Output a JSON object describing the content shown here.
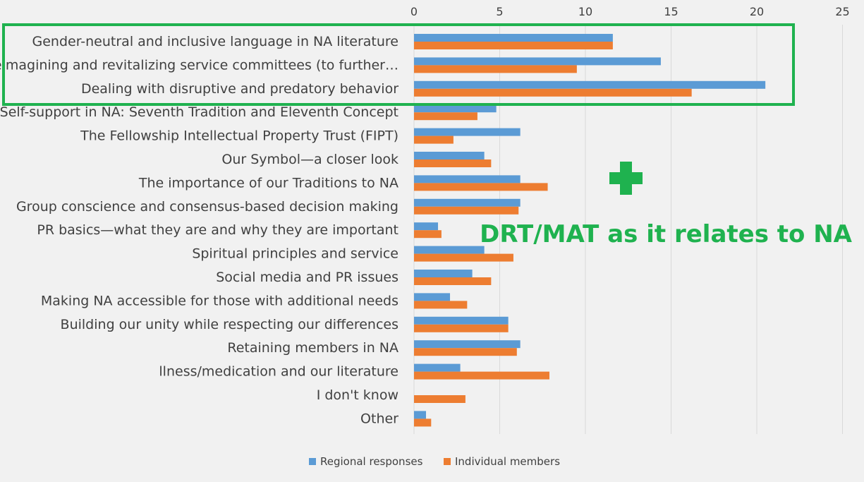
{
  "chart_data": {
    "type": "bar",
    "orientation": "horizontal",
    "categories": [
      "Gender-neutral and inclusive language in NA literature",
      "Reimagining and revitalizing service committees (to further…",
      "Dealing with disruptive and predatory behavior",
      "Self-support in NA: Seventh Tradition and Eleventh Concept",
      "The Fellowship Intellectual Property Trust (FIPT)",
      "Our Symbol—a closer look",
      "The importance of our Traditions to NA",
      "Group conscience and consensus-based decision making",
      "PR basics—what they are and why they are important",
      "Spiritual principles and service",
      "Social media and PR issues",
      "Making NA accessible for those with additional needs",
      "Building our unity while respecting our differences",
      "Retaining members in NA",
      "llness/medication and our literature",
      "I don't know",
      "Other"
    ],
    "series": [
      {
        "name": "Regional responses",
        "color": "#5b9bd5",
        "values": [
          11.6,
          14.4,
          20.5,
          4.8,
          6.2,
          4.1,
          6.2,
          6.2,
          1.4,
          4.1,
          3.4,
          2.1,
          5.5,
          6.2,
          2.7,
          0,
          0.7
        ]
      },
      {
        "name": "Individual members",
        "color": "#ed7d31",
        "values": [
          11.6,
          9.5,
          16.2,
          3.7,
          2.3,
          4.5,
          7.8,
          6.1,
          1.6,
          5.8,
          4.5,
          3.1,
          5.5,
          6.0,
          7.9,
          3.0,
          1.0
        ]
      }
    ],
    "xticks": [
      "0",
      "5",
      "10",
      "15",
      "20",
      "25"
    ],
    "xlim": [
      0,
      25
    ],
    "grid": true,
    "legend_position": "bottom",
    "annotations": {
      "highlight_box": "categories 1-3",
      "plus_symbol": "+",
      "text": "DRT/MAT as it relates to NA",
      "color": "#1fb24f"
    }
  }
}
